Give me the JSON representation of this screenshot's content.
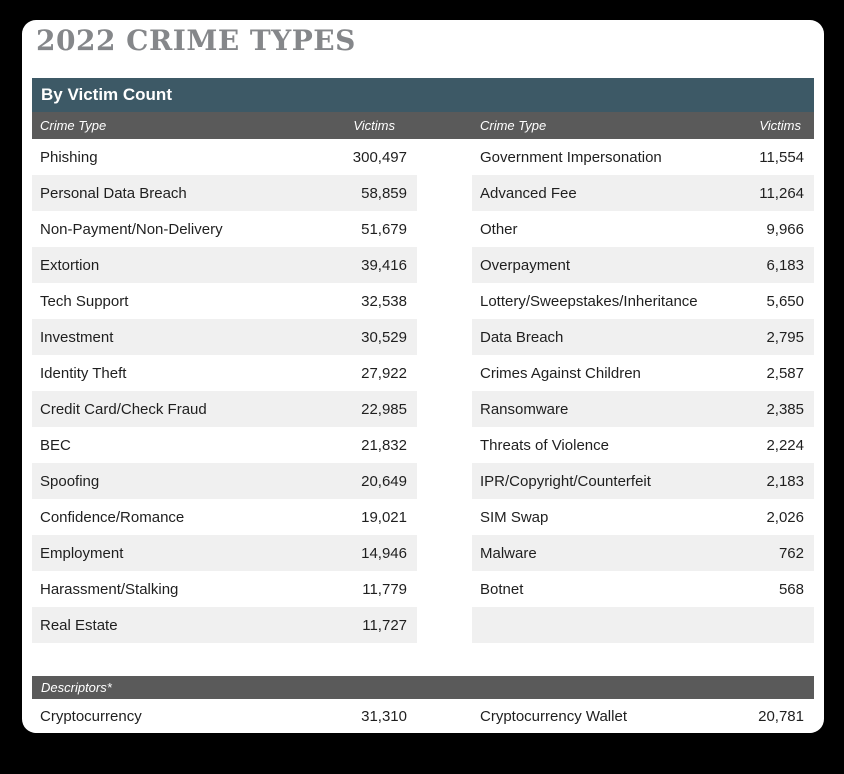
{
  "page": {
    "title": "2022 CRIME TYPES"
  },
  "colors": {
    "page_background": "#000000",
    "card_background": "#ffffff",
    "section_header_background": "#3d5966",
    "column_header_background": "#5a5a5a",
    "alternate_row_background": "#f0f0f0",
    "title_text": "#85878a",
    "body_text": "#1f1f1f"
  },
  "victim_count_table": {
    "section_title": "By Victim Count",
    "column_headers": {
      "crime_type": "Crime Type",
      "victims": "Victims"
    },
    "left_rows": [
      {
        "crime_type": "Phishing",
        "victims": "300,497"
      },
      {
        "crime_type": "Personal Data Breach",
        "victims": "58,859"
      },
      {
        "crime_type": "Non-Payment/Non-Delivery",
        "victims": "51,679"
      },
      {
        "crime_type": "Extortion",
        "victims": "39,416"
      },
      {
        "crime_type": "Tech Support",
        "victims": "32,538"
      },
      {
        "crime_type": "Investment",
        "victims": "30,529"
      },
      {
        "crime_type": "Identity Theft",
        "victims": "27,922"
      },
      {
        "crime_type": "Credit Card/Check Fraud",
        "victims": "22,985"
      },
      {
        "crime_type": "BEC",
        "victims": "21,832"
      },
      {
        "crime_type": "Spoofing",
        "victims": "20,649"
      },
      {
        "crime_type": "Confidence/Romance",
        "victims": "19,021"
      },
      {
        "crime_type": "Employment",
        "victims": "14,946"
      },
      {
        "crime_type": "Harassment/Stalking",
        "victims": "11,779"
      },
      {
        "crime_type": "Real Estate",
        "victims": "11,727"
      }
    ],
    "right_rows": [
      {
        "crime_type": "Government Impersonation",
        "victims": "11,554"
      },
      {
        "crime_type": "Advanced Fee",
        "victims": "11,264"
      },
      {
        "crime_type": "Other",
        "victims": "9,966"
      },
      {
        "crime_type": "Overpayment",
        "victims": "6,183"
      },
      {
        "crime_type": "Lottery/Sweepstakes/Inheritance",
        "victims": "5,650"
      },
      {
        "crime_type": "Data Breach",
        "victims": "2,795"
      },
      {
        "crime_type": "Crimes Against Children",
        "victims": "2,587"
      },
      {
        "crime_type": "Ransomware",
        "victims": "2,385"
      },
      {
        "crime_type": "Threats of Violence",
        "victims": "2,224"
      },
      {
        "crime_type": "IPR/Copyright/Counterfeit",
        "victims": "2,183"
      },
      {
        "crime_type": "SIM Swap",
        "victims": "2,026"
      },
      {
        "crime_type": "Malware",
        "victims": "762"
      },
      {
        "crime_type": "Botnet",
        "victims": "568"
      },
      {
        "crime_type": "",
        "victims": ""
      }
    ]
  },
  "descriptors_table": {
    "section_title": "Descriptors*",
    "rows": [
      {
        "crime_type": "Cryptocurrency",
        "victims": "31,310"
      },
      {
        "crime_type": "Cryptocurrency Wallet",
        "victims": "20,781"
      }
    ]
  }
}
